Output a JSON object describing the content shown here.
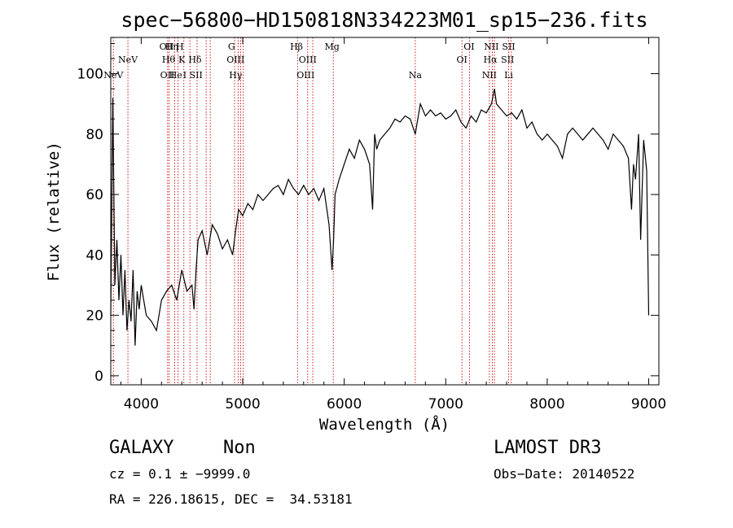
{
  "chart_data": {
    "type": "line",
    "title": "spec−56800−HD150818N334223M01_sp15−236.fits",
    "xlabel": "Wavelength (Å)",
    "ylabel": "Flux (relative)",
    "xlim": [
      3700,
      9100
    ],
    "ylim": [
      -3,
      112
    ],
    "x_ticks": [
      "4000",
      "5000",
      "6000",
      "7000",
      "8000",
      "9000"
    ],
    "x_tick_values": [
      4000,
      5000,
      6000,
      7000,
      8000,
      9000
    ],
    "y_ticks": [
      "0",
      "20",
      "40",
      "60",
      "80",
      "100"
    ],
    "y_tick_values": [
      0,
      20,
      40,
      60,
      80,
      100
    ],
    "series": [
      {
        "x": [
          3700,
          3720,
          3740,
          3760,
          3780,
          3800,
          3820,
          3840,
          3860,
          3880,
          3900,
          3920,
          3940,
          3960,
          3980,
          4000,
          4050,
          4100,
          4150,
          4200,
          4250,
          4300,
          4350,
          4400,
          4450,
          4500,
          4520,
          4540,
          4560,
          4600,
          4650,
          4700,
          4750,
          4800,
          4850,
          4900,
          4930,
          4960,
          5000,
          5050,
          5100,
          5150,
          5200,
          5250,
          5300,
          5350,
          5400,
          5450,
          5500,
          5550,
          5600,
          5650,
          5700,
          5750,
          5800,
          5850,
          5880,
          5895,
          5910,
          5950,
          6000,
          6050,
          6100,
          6150,
          6200,
          6250,
          6280,
          6300,
          6320,
          6350,
          6400,
          6450,
          6500,
          6550,
          6600,
          6650,
          6700,
          6750,
          6800,
          6850,
          6900,
          6950,
          7000,
          7050,
          7100,
          7150,
          7200,
          7250,
          7300,
          7350,
          7400,
          7450,
          7480,
          7500,
          7550,
          7600,
          7650,
          7700,
          7750,
          7800,
          7850,
          7900,
          7950,
          8000,
          8050,
          8100,
          8150,
          8200,
          8250,
          8300,
          8350,
          8400,
          8450,
          8500,
          8550,
          8600,
          8650,
          8700,
          8750,
          8800,
          8830,
          8850,
          8870,
          8900,
          8920,
          8950,
          8980,
          9000
        ],
        "y": [
          20,
          92,
          30,
          45,
          25,
          40,
          20,
          35,
          15,
          25,
          18,
          35,
          10,
          28,
          22,
          30,
          20,
          18,
          15,
          25,
          28,
          30,
          25,
          35,
          28,
          30,
          22,
          35,
          45,
          48,
          40,
          50,
          47,
          42,
          45,
          40,
          48,
          55,
          53,
          57,
          55,
          60,
          58,
          60,
          62,
          63,
          60,
          65,
          62,
          60,
          63,
          60,
          62,
          58,
          62,
          50,
          35,
          45,
          60,
          65,
          70,
          75,
          72,
          78,
          75,
          70,
          55,
          80,
          75,
          78,
          80,
          82,
          85,
          84,
          86,
          85,
          80,
          90,
          86,
          88,
          86,
          87,
          85,
          86,
          88,
          84,
          82,
          86,
          84,
          88,
          87,
          90,
          95,
          90,
          88,
          86,
          87,
          85,
          88,
          82,
          84,
          80,
          78,
          80,
          78,
          76,
          72,
          80,
          82,
          80,
          78,
          80,
          82,
          80,
          78,
          75,
          80,
          78,
          76,
          72,
          55,
          70,
          65,
          80,
          45,
          78,
          68,
          20
        ]
      }
    ],
    "line_markers": [
      {
        "label": "NeV",
        "x": 3726,
        "row": 3
      },
      {
        "label": "NeV",
        "x": 3869,
        "row": 2
      },
      {
        "label": "OII",
        "x": 4250,
        "row": 1
      },
      {
        "label": "OII",
        "x": 4258,
        "row": 3
      },
      {
        "label": "Hθ",
        "x": 4270,
        "row": 2
      },
      {
        "label": "Hη",
        "x": 4300,
        "row": 1
      },
      {
        "label": "He",
        "x": 4340,
        "row": 3
      },
      {
        "label": "H",
        "x": 4380,
        "row": 1
      },
      {
        "label": "K",
        "x": 4400,
        "row": 2
      },
      {
        "label": "I",
        "x": 4430,
        "row": 3
      },
      {
        "label": "Hδ",
        "x": 4530,
        "row": 2
      },
      {
        "label": "SII",
        "x": 4540,
        "row": 3
      },
      {
        "label": "G",
        "x": 4890,
        "row": 1
      },
      {
        "label": "OIII",
        "x": 4930,
        "row": 2
      },
      {
        "label": "Hγ",
        "x": 4930,
        "row": 3
      },
      {
        "label": "Hβ",
        "x": 5530,
        "row": 1
      },
      {
        "label": "OIII",
        "x": 5640,
        "row": 2
      },
      {
        "label": "OIII",
        "x": 5620,
        "row": 3
      },
      {
        "label": "Mg",
        "x": 5880,
        "row": 1
      },
      {
        "label": "Na",
        "x": 6700,
        "row": 3
      },
      {
        "label": "OI",
        "x": 7230,
        "row": 1
      },
      {
        "label": "OI",
        "x": 7160,
        "row": 2
      },
      {
        "label": "NII",
        "x": 7450,
        "row": 1
      },
      {
        "label": "Hα",
        "x": 7440,
        "row": 2
      },
      {
        "label": "NII",
        "x": 7430,
        "row": 3
      },
      {
        "label": "SII",
        "x": 7620,
        "row": 1
      },
      {
        "label": "SII",
        "x": 7610,
        "row": 2
      },
      {
        "label": "Li",
        "x": 7620,
        "row": 3
      }
    ],
    "marker_lines": [
      3726,
      3869,
      4260,
      4275,
      4330,
      4363,
      4420,
      4480,
      4550,
      4640,
      4680,
      4920,
      4955,
      4980,
      5005,
      5540,
      5640,
      5690,
      5892,
      6700,
      7160,
      7235,
      7430,
      7460,
      7480,
      7620,
      7645
    ],
    "colors": {
      "spectrum": "#000000",
      "marker": "#cc0000",
      "axis": "#000000"
    }
  },
  "info": {
    "class_label": "GALAXY",
    "subclass_label": "Non",
    "cz_label": "cz = 0.1 ± −9999.0",
    "coords_label": "RA = 226.18615, DEC =  34.53181",
    "survey_label": "LAMOST DR3",
    "obs_date_label": "Obs−Date: 20140522"
  }
}
